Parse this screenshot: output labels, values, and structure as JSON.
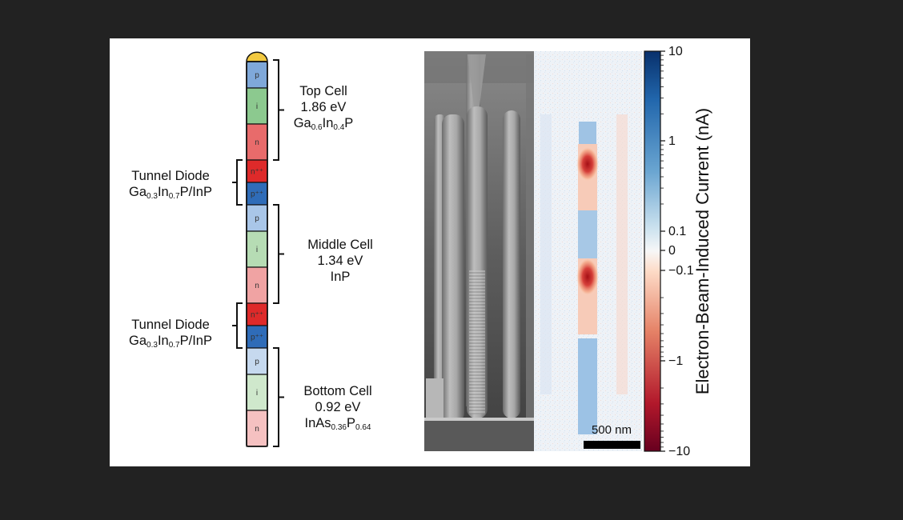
{
  "structure": {
    "segments": [
      {
        "letter": "p",
        "color": "#7fa8d9"
      },
      {
        "letter": "i",
        "color": "#8cc98f"
      },
      {
        "letter": "n",
        "color": "#e86b6b"
      },
      {
        "letter": "n⁺⁺",
        "color": "#de2a2a"
      },
      {
        "letter": "p⁺⁺",
        "color": "#2f6cb8"
      },
      {
        "letter": "p",
        "color": "#a9c6e8"
      },
      {
        "letter": "i",
        "color": "#b6dcb4"
      },
      {
        "letter": "n",
        "color": "#f0a3a3"
      },
      {
        "letter": "n⁺⁺",
        "color": "#de2a2a"
      },
      {
        "letter": "p⁺⁺",
        "color": "#2f6cb8"
      },
      {
        "letter": "p",
        "color": "#c6d9ef"
      },
      {
        "letter": "i",
        "color": "#cfe8cc"
      },
      {
        "letter": "n",
        "color": "#f5c1c1"
      }
    ],
    "cap_color": "#f2c940"
  },
  "labels": {
    "top_cell": {
      "name": "Top Cell",
      "energy": "1.86 eV",
      "m1": "Ga",
      "s1": "0.6",
      "m2": "In",
      "s2": "0.4",
      "m3": "P"
    },
    "tunnel_1": {
      "name": "Tunnel Diode",
      "m1": "Ga",
      "s1": "0.3",
      "m2": "In",
      "s2": "0.7",
      "m3": "P/InP"
    },
    "middle_cell": {
      "name": "Middle Cell",
      "energy": "1.34 eV",
      "material": "InP"
    },
    "tunnel_2": {
      "name": "Tunnel Diode",
      "m1": "Ga",
      "s1": "0.3",
      "m2": "In",
      "s2": "0.7",
      "m3": "P/InP"
    },
    "bottom_cell": {
      "name": "Bottom Cell",
      "energy": "0.92 eV",
      "m1": "InAs",
      "s1": "0.36",
      "m2": "P",
      "s2": "0.64"
    }
  },
  "scale_bar": {
    "label": "500 nm"
  },
  "colorbar": {
    "title": "Electron-Beam-Induced Current (nA)",
    "ticks": [
      "10",
      "1",
      "0.1",
      "0",
      "−0.1",
      "−1",
      "−10"
    ],
    "colors": {
      "positive": "#08306b",
      "zero": "#f7f7f7",
      "negative": "#67001f"
    }
  }
}
